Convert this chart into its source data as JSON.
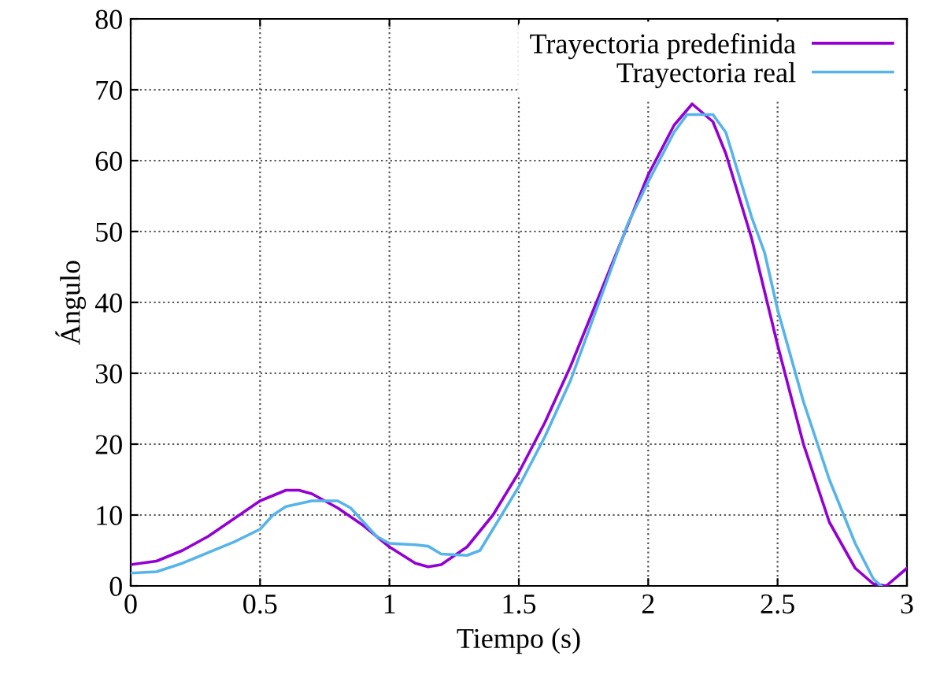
{
  "chart_data": {
    "type": "line",
    "xlabel": "Tiempo (s)",
    "ylabel": "Ángulo",
    "xlim": [
      0,
      3
    ],
    "ylim": [
      0,
      80
    ],
    "xticks": [
      0,
      0.5,
      1,
      1.5,
      2,
      2.5,
      3
    ],
    "yticks": [
      0,
      10,
      20,
      30,
      40,
      50,
      60,
      70,
      80
    ],
    "grid": true,
    "legend": "top right",
    "marker": "none",
    "line_style": "solid",
    "series": [
      {
        "name": "Trayectoria predefinida",
        "color": "#9400d3",
        "x": [
          0,
          0.1,
          0.2,
          0.3,
          0.4,
          0.5,
          0.6,
          0.65,
          0.7,
          0.8,
          0.9,
          1.0,
          1.1,
          1.15,
          1.2,
          1.3,
          1.4,
          1.5,
          1.6,
          1.7,
          1.8,
          1.9,
          2.0,
          2.1,
          2.17,
          2.25,
          2.3,
          2.4,
          2.5,
          2.6,
          2.7,
          2.8,
          2.87,
          2.92,
          3.0
        ],
        "values": [
          3,
          3.5,
          5,
          7,
          9.5,
          12,
          13.5,
          13.5,
          13,
          11,
          8.5,
          5.5,
          3.2,
          2.7,
          3,
          5.5,
          10,
          16,
          23,
          31,
          40,
          49,
          58,
          65,
          68,
          65.5,
          61,
          49,
          34,
          20,
          9,
          2.5,
          0.3,
          0,
          2.5
        ]
      },
      {
        "name": "Trayectoria real",
        "color": "#56b4e9",
        "x": [
          0,
          0.1,
          0.2,
          0.3,
          0.4,
          0.5,
          0.55,
          0.6,
          0.7,
          0.8,
          0.85,
          0.9,
          0.95,
          1.0,
          1.1,
          1.15,
          1.2,
          1.3,
          1.35,
          1.4,
          1.5,
          1.6,
          1.7,
          1.8,
          1.87,
          1.92,
          2.0,
          2.1,
          2.15,
          2.25,
          2.3,
          2.35,
          2.4,
          2.45,
          2.5,
          2.6,
          2.7,
          2.8,
          2.87,
          2.9
        ],
        "values": [
          1.8,
          2,
          3.2,
          4.7,
          6.2,
          8,
          10,
          11.2,
          12,
          12,
          11,
          9,
          7,
          6,
          5.8,
          5.6,
          4.5,
          4.3,
          5,
          8,
          14,
          21,
          29,
          39,
          46,
          51,
          57,
          64,
          66.5,
          66.5,
          64,
          58,
          52,
          47,
          39,
          26,
          15,
          6,
          1,
          0
        ]
      }
    ]
  }
}
